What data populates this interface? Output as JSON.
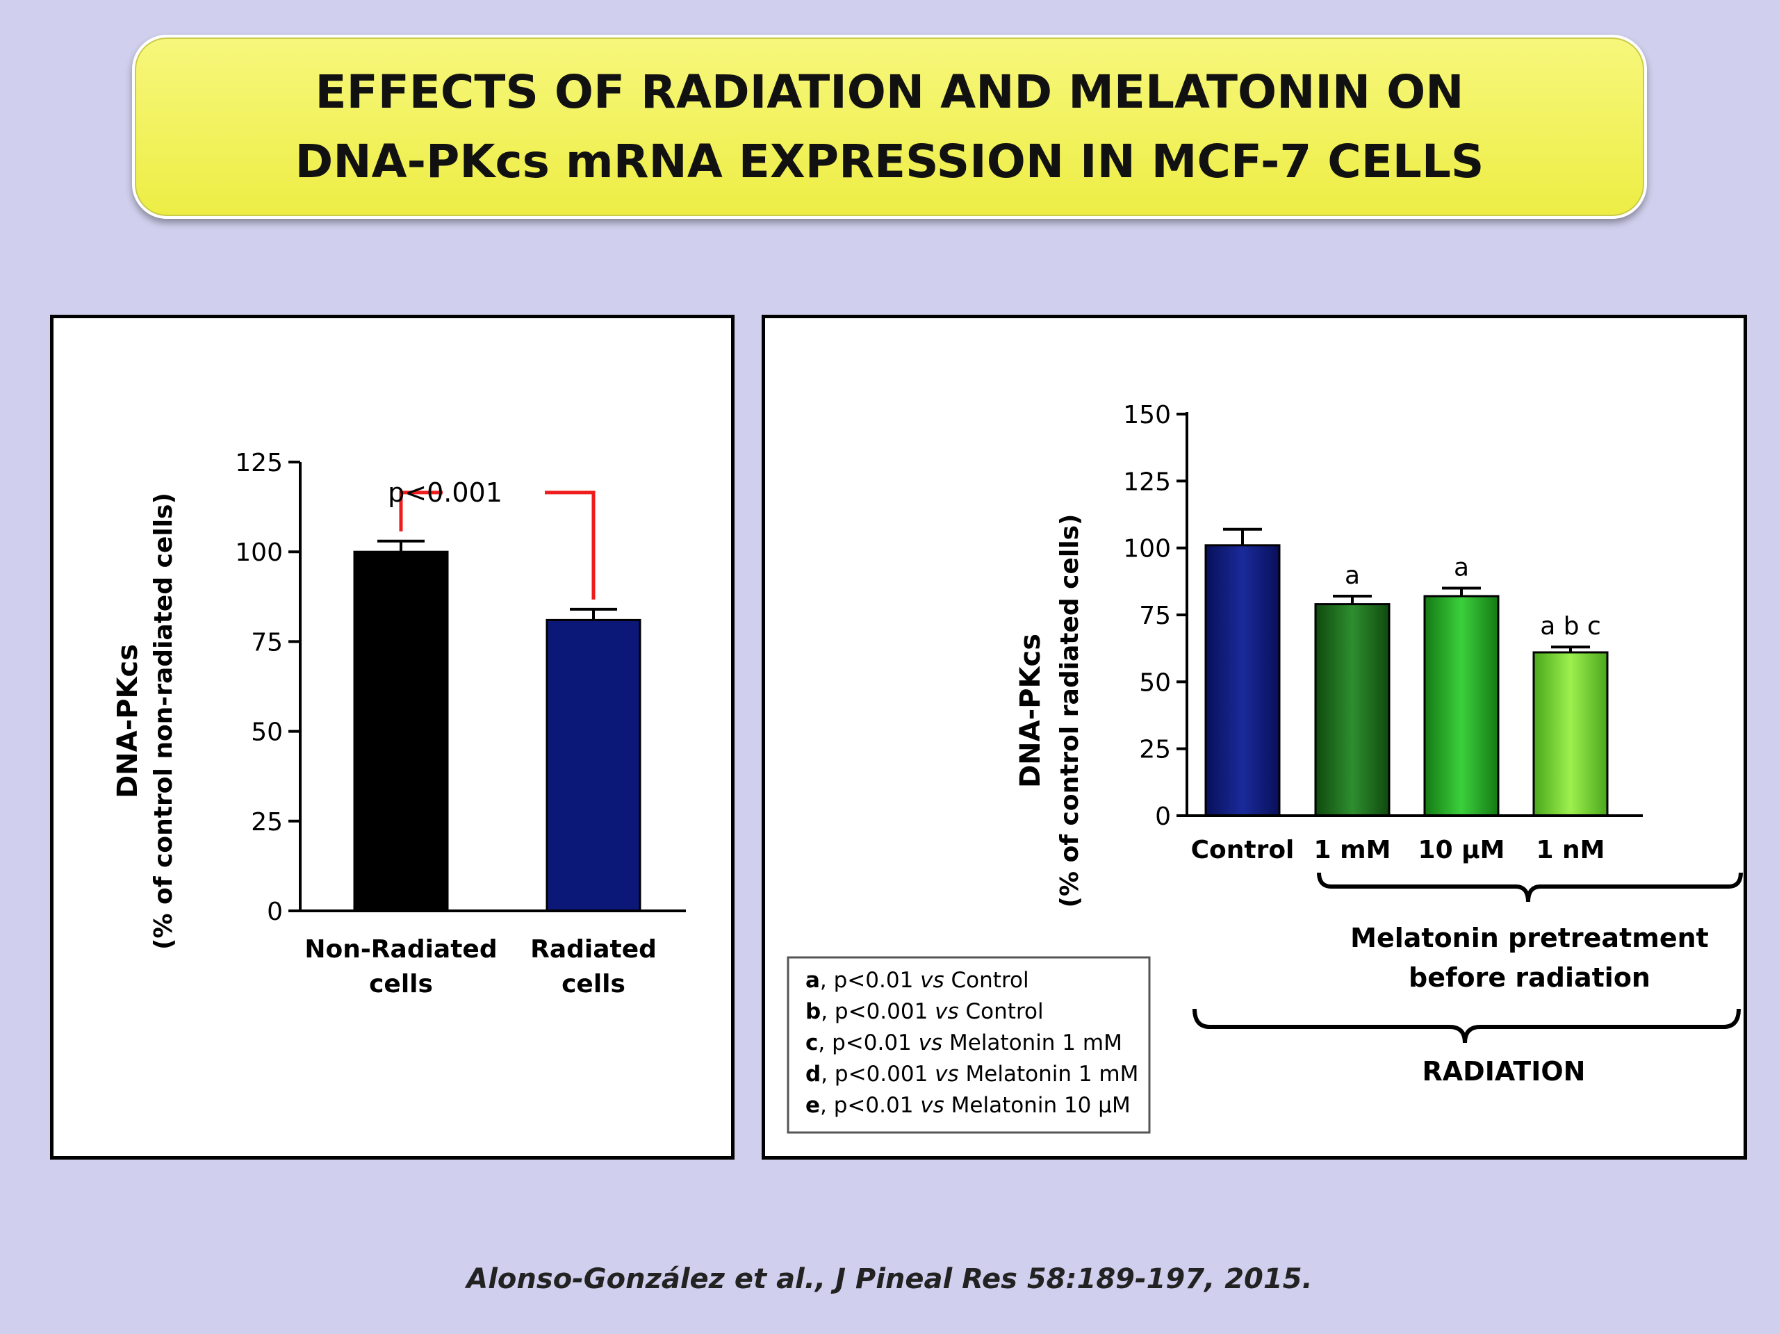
{
  "title": {
    "line1": "EFFECTS OF RADIATION AND MELATONIN ON",
    "line2": "DNA-PKcs mRNA EXPRESSION IN MCF-7 CELLS"
  },
  "citation": "Alonso-González et al., J Pineal Res 58:189-197, 2015.",
  "colors": {
    "background": "#d0d0ee",
    "title_fill": "#f2f256",
    "bar_black": "#000000",
    "bar_navy": "#0c1878",
    "bracket_red": "#ee1c1c",
    "green_1mM": "#1f7a1f",
    "green_10uM": "#25b025",
    "green_1nM": "#7ee03a"
  },
  "chart_data": [
    {
      "type": "bar",
      "ylabel_main": "DNA-PKcs",
      "ylabel_sub": "(% of control non-radiated cells)",
      "ylim": [
        0,
        125
      ],
      "yticks": [
        0,
        25,
        50,
        75,
        100,
        125
      ],
      "categories": [
        {
          "line1": "Non-Radiated",
          "line2": "cells"
        },
        {
          "line1": "Radiated",
          "line2": "cells"
        }
      ],
      "values": [
        100,
        81
      ],
      "errors": [
        3,
        3
      ],
      "bar_colors": [
        "#000000",
        "#0c1878"
      ],
      "significance": "p<0.001"
    },
    {
      "type": "bar",
      "ylabel_main": "DNA-PKcs",
      "ylabel_sub": "(% of control radiated cells)",
      "ylim": [
        0,
        150
      ],
      "yticks": [
        0,
        25,
        50,
        75,
        100,
        125,
        150
      ],
      "categories": [
        "Control",
        "1 mM",
        "10 μM",
        "1 nM"
      ],
      "values": [
        101,
        79,
        82,
        61
      ],
      "errors": [
        6,
        3,
        3,
        2
      ],
      "bar_colors": [
        "#0c1878",
        "#1f7a1f",
        "#25b025",
        "#7ee03a"
      ],
      "annotations": [
        "",
        "a",
        "a",
        "a b c"
      ],
      "group_label_1": "Melatonin pretreatment",
      "group_label_2": "before radiation",
      "group_label_3": "RADIATION",
      "legend": [
        {
          "key": "a",
          "text1": ", p<0.01 ",
          "vs": "vs",
          "text2": " Control"
        },
        {
          "key": "b",
          "text1": ", p<0.001 ",
          "vs": "vs",
          "text2": " Control"
        },
        {
          "key": "c",
          "text1": ", p<0.01 ",
          "vs": "vs",
          "text2": " Melatonin 1 mM"
        },
        {
          "key": "d",
          "text1": ", p<0.001 ",
          "vs": "vs",
          "text2": " Melatonin 1 mM"
        },
        {
          "key": "e",
          "text1": ", p<0.01 ",
          "vs": "vs",
          "text2": " Melatonin 10 μM"
        }
      ]
    }
  ]
}
